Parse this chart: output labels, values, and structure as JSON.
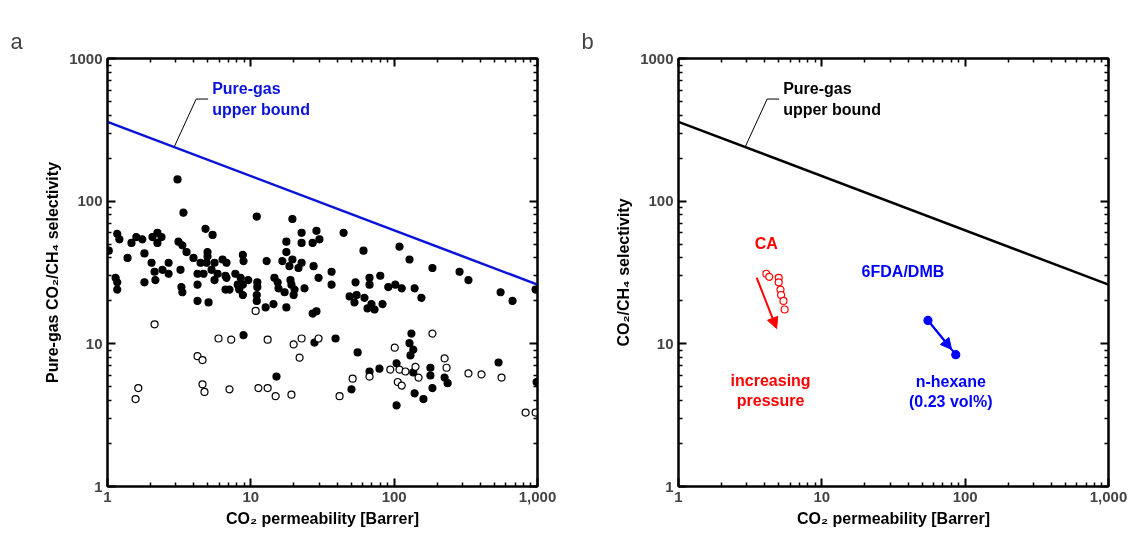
{
  "chart_data": [
    {
      "type": "scatter",
      "title": "a",
      "xlabel": "CO₂ permeability [Barrer]",
      "ylabel": "Pure-gas CO₂/CH₄ selectivity",
      "log": "xy",
      "xlim": [
        1,
        1000
      ],
      "ylim": [
        1,
        1000
      ],
      "xticks": [
        1,
        10,
        100,
        {
          "value": 1000,
          "label": "1,000"
        }
      ],
      "yticks": [
        1,
        10,
        100,
        1000
      ],
      "grid": false,
      "marker": "circle",
      "series": [
        {
          "name": "Pure-gas\nupper bound",
          "type": "line",
          "marker": "none",
          "color": "#0a14d8",
          "x": [
            1,
            1000
          ],
          "values": [
            360,
            26
          ]
        },
        {
          "color": "#000000",
          "x": [
            1.17,
            1.21,
            1.02,
            1.38,
            1.14,
            1.17,
            1.17,
            1.47,
            1.59,
            1.75,
            1.81,
            1.81,
            2.03,
            2.13,
            2.16,
            2.06,
            2.23,
            2.23,
            2.38,
            2.42,
            2.67,
            2.67,
            3.08,
            3.39,
            3.13,
            3.33,
            3.56,
            3.23,
            3.28,
            3.33,
            3.98,
            4.25,
            4.25,
            4.25,
            4.83,
            5.41,
            4.99,
            4.99,
            4.46,
            4.91,
            4.68,
            5.32,
            5.58,
            6.35,
            6.77,
            5.58,
            5.86,
            6.66,
            6.77,
            5.07,
            6.66,
            7.1,
            7.8,
            8.5,
            8.1,
            8.8,
            8.3,
            8.8,
            8.8,
            8.9,
            9.6,
            11.0,
            11.1,
            11.1,
            11.0,
            11.0,
            12.7,
            14.4,
            12.9,
            14.6,
            15.4,
            15.6,
            16.6,
            17.7,
            17.7,
            17.7,
            18.6,
            19.5,
            18.9,
            19.2,
            17.2,
            20.2,
            19.9,
            23.7,
            19.5,
            22.6,
            22.6,
            21.5,
            22.6,
            27.0,
            27.4,
            27.0,
            28.7,
            30.1,
            44.4,
            29.7,
            36.6,
            36.6,
            28.7,
            61.1,
            53.8,
            48.9,
            54.7,
            52.9,
            62.1,
            67.3,
            67.3,
            69.5,
            65.2,
            73,
            80,
            83,
            91,
            102,
            113,
            109,
            128,
            139,
            155,
            185,
            286,
            330,
            553,
            670,
            970,
            27.8,
            39.0,
            55.6,
            50.4,
            67.3,
            79,
            104,
            104,
            132,
            128,
            136,
            130,
            136,
            139,
            160,
            179,
            179,
            185,
            225,
            236,
            535,
            986,
            8.9,
            15.1
          ],
          "values": [
            59,
            54,
            45,
            40,
            29,
            27,
            24,
            51,
            56,
            54,
            43,
            27,
            37,
            32,
            28,
            56,
            60,
            51,
            56,
            33,
            37,
            31,
            142,
            83,
            52,
            49,
            44,
            33,
            25,
            23,
            40,
            31,
            26,
            20,
            64,
            58,
            44,
            41,
            37,
            37,
            31,
            33,
            37,
            39,
            37,
            28,
            31,
            30,
            29,
            19.5,
            24,
            24,
            31,
            29,
            26,
            26,
            24,
            22,
            42,
            38,
            28,
            78,
            27,
            25,
            22,
            20,
            18,
            19,
            38,
            29,
            27,
            24.5,
            38,
            52,
            44,
            18,
            35,
            39,
            28,
            26,
            23,
            24,
            22,
            24.5,
            75,
            60,
            51,
            34,
            37,
            51,
            35,
            16.3,
            62,
            54,
            60,
            29,
            32,
            26,
            16.9,
            45,
            27,
            21.5,
            22,
            19.5,
            21,
            29,
            26,
            19,
            17.7,
            17.4,
            30,
            19,
            25,
            26,
            24.5,
            48,
            39,
            24.5,
            21,
            34,
            32,
            28,
            23,
            20,
            24,
            10.2,
            10.9,
            8.7,
            4.8,
            6.4,
            6.7,
            7.3,
            3.7,
            11.8,
            10.1,
            9.1,
            8.3,
            6.3,
            4.5,
            4.1,
            6.8,
            6.0,
            4.9,
            5.8,
            5.3,
            7.4,
            5.4,
            11.5,
            5.9
          ]
        },
        {
          "color": "#000000",
          "marker": "open circle",
          "x": [
            2.13,
            1.57,
            1.64,
            4.25,
            4.6,
            4.6,
            4.75,
            5.95,
            7.3,
            7.1,
            11.3,
            13.1,
            13.1,
            14.9,
            19.2,
            19.9,
            22.6,
            21.9,
            10.8,
            29.7,
            41.6,
            51.3,
            67.3,
            94,
            101,
            106,
            113,
            109,
            120,
            141,
            148,
            185,
            225,
            232,
            330,
            407,
            561,
            826,
            970
          ],
          "values": [
            13.7,
            4.1,
            4.9,
            8.2,
            7.7,
            5.2,
            4.6,
            10.9,
            10.7,
            4.8,
            4.9,
            4.9,
            10.7,
            4.3,
            4.4,
            9.9,
            10.9,
            8.0,
            17,
            10.9,
            4.3,
            5.7,
            5.9,
            6.6,
            9.4,
            5.4,
            5.1,
            6.6,
            6.4,
            6.9,
            5.8,
            11.8,
            7.9,
            6.8,
            6.2,
            6.1,
            5.8,
            3.3,
            3.3
          ]
        }
      ]
    },
    {
      "type": "scatter",
      "title": "b",
      "xlabel": "CO₂ permeability [Barrer]",
      "ylabel": "CO₂/CH₄ selectivity",
      "log": "xy",
      "xlim": [
        1,
        1000
      ],
      "ylim": [
        1,
        1000
      ],
      "xticks": [
        1,
        10,
        100,
        {
          "value": 1000,
          "label": "1,000"
        }
      ],
      "yticks": [
        1,
        10,
        100,
        1000
      ],
      "grid": false,
      "marker": "circle",
      "series": [
        {
          "name": "Pure-gas\nupper bound",
          "type": "line",
          "marker": "none",
          "color": "#000000",
          "x": [
            1,
            1000
          ],
          "values": [
            360,
            26
          ]
        },
        {
          "name": "CA",
          "color": "#ff0000",
          "marker": "open circle",
          "x": [
            4.1,
            4.3,
            5.0,
            5.0,
            5.15,
            5.2,
            5.4,
            5.5
          ],
          "values": [
            31,
            29.5,
            29,
            27,
            24,
            22,
            20,
            17.4
          ]
        },
        {
          "name": "6FDA/DMB",
          "type": "line",
          "marker": "circle",
          "color": "#0000ff",
          "x": [
            55,
            86
          ],
          "values": [
            14.6,
            8.4
          ]
        }
      ],
      "annotations": [
        "increasing\npressure",
        "n-hexane\n(0.23 vol%)"
      ]
    }
  ]
}
